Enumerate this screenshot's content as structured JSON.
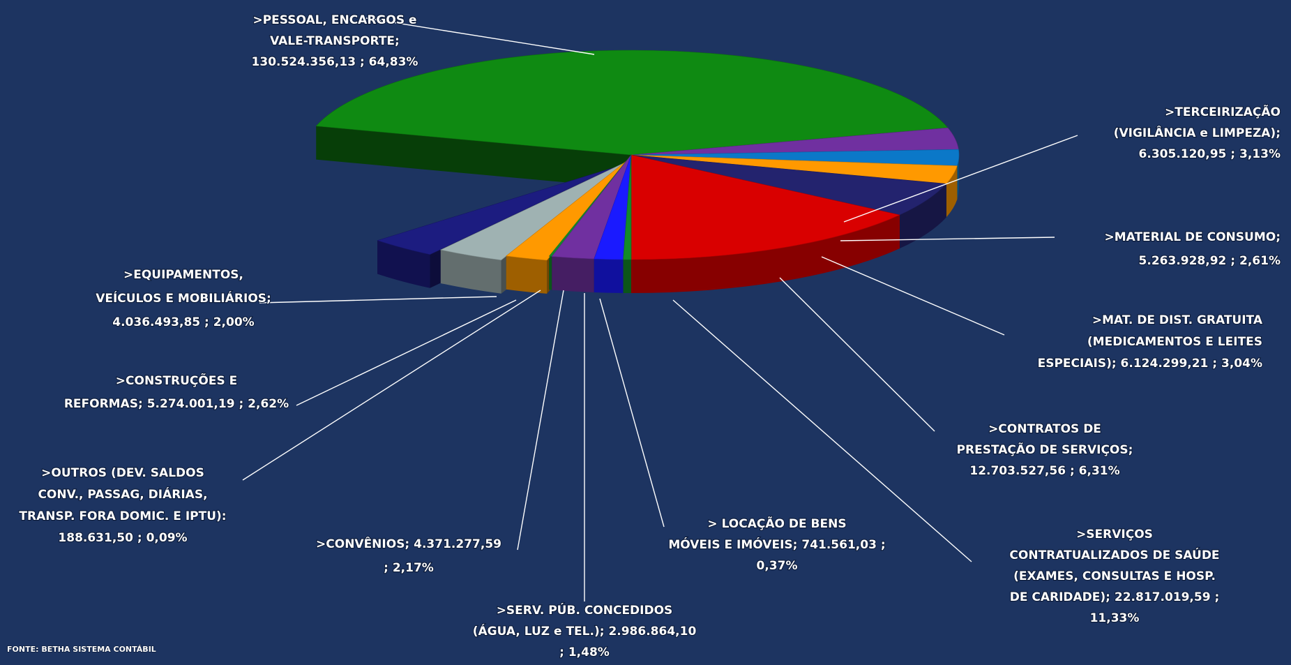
{
  "chart_data": {
    "type": "pie",
    "title": "",
    "source_note": "FONTE: BETHA SISTEMA CONTÁBIL",
    "slices": [
      {
        "key": "pessoal",
        "value": 130524356.13,
        "percent": 64.83,
        "color": "#0f8a12",
        "lines": [
          ">PESSOAL, ENCARGOS e",
          "VALE-TRANSPORTE;",
          "130.524.356,13 ; 64,83%"
        ]
      },
      {
        "key": "terceirizacao",
        "value": 6305120.95,
        "percent": 3.13,
        "color": "#7030a0",
        "lines": [
          ">TERCEIRIZAÇÃO",
          "(VIGILÂNCIA e LIMPEZA);",
          "6.305.120,95 ; 3,13%"
        ]
      },
      {
        "key": "material-consumo",
        "value": 5263928.92,
        "percent": 2.61,
        "color": "#0b78c8",
        "lines": [
          ">MATERIAL DE CONSUMO;",
          "5.263.928,92 ; 2,61%"
        ]
      },
      {
        "key": "mat-dist-gratuita",
        "value": 6124299.21,
        "percent": 3.04,
        "color": "#ff9900",
        "lines": [
          ">MAT. DE DIST. GRATUITA",
          "(MEDICAMENTOS E LEITES",
          "ESPECIAIS); 6.124.299,21 ; 3,04%"
        ]
      },
      {
        "key": "contratos-servicos",
        "value": 12703527.56,
        "percent": 6.31,
        "color": "#23236e",
        "lines": [
          ">CONTRATOS DE",
          "PRESTAÇÃO DE SERVIÇOS;",
          "12.703.527,56 ; 6,31%"
        ]
      },
      {
        "key": "servicos-saude",
        "value": 22817019.59,
        "percent": 11.33,
        "color": "#d90000",
        "lines": [
          ">SERVIÇOS",
          "CONTRATUALIZADOS DE SAÚDE",
          "(EXAMES, CONSULTAS E HOSP.",
          "DE CARIDADE); 22.817.019,59 ;",
          "11,33%"
        ]
      },
      {
        "key": "locacao-bens",
        "value": 741561.03,
        "percent": 0.37,
        "color": "#138a2a",
        "lines": [
          "> LOCAÇÃO DE BENS",
          "MÓVEIS E IMÓVEIS; 741.561,03 ;",
          "0,37%"
        ]
      },
      {
        "key": "serv-pub-concedidos",
        "value": 2986864.1,
        "percent": 1.48,
        "color": "#1a1aff",
        "lines": [
          ">SERV. PÚB. CONCEDIDOS",
          "(ÁGUA, LUZ e TEL.); 2.986.864,10",
          "; 1,48%"
        ]
      },
      {
        "key": "convenios",
        "value": 4371277.59,
        "percent": 2.17,
        "color": "#7030a0",
        "lines": [
          ">CONVÊNIOS; 4.371.277,59",
          "; 2,17%"
        ]
      },
      {
        "key": "outros",
        "value": 188631.5,
        "percent": 0.09,
        "color": "#138a2a",
        "lines": [
          ">OUTROS (DEV. SALDOS",
          "CONV., PASSAG, DIÁRIAS,",
          "TRANSP. FORA DOMIC. E IPTU):",
          "188.631,50 ; 0,09%"
        ]
      },
      {
        "key": "construcoes-reformas",
        "value": 5274001.19,
        "percent": 2.62,
        "color": "#ff9900",
        "lines": [
          ">CONSTRUÇÕES E",
          "REFORMAS; 5.274.001,19 ; 2,62%"
        ]
      },
      {
        "key": "equipamentos",
        "value": 4036493.85,
        "percent": 2.0,
        "color": "#9fb2b2",
        "lines": [
          ">EQUIPAMENTOS,",
          "VEÍCULOS E MOBILIÁRIOS;",
          "4.036.493,85 ; 2,00%"
        ]
      },
      {
        "key": "extra-navy",
        "value": null,
        "percent": null,
        "color": "#1c1c80",
        "lines": []
      }
    ]
  }
}
